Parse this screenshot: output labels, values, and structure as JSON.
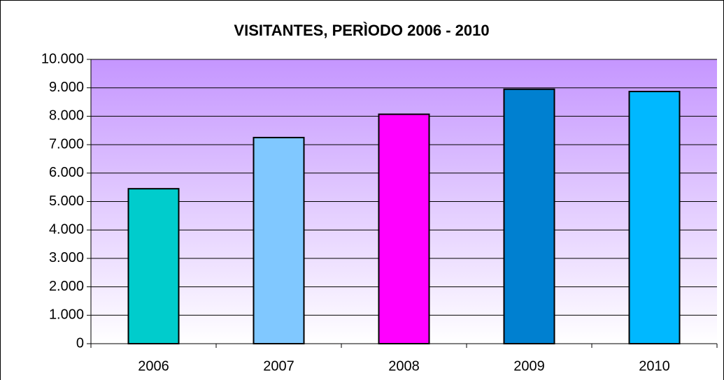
{
  "chart_data": {
    "type": "bar",
    "title": "VISITANTES, PERÌODO 2006 - 2010",
    "categories": [
      "2006",
      "2007",
      "2008",
      "2009",
      "2010"
    ],
    "values": [
      5450,
      7250,
      8070,
      8950,
      8870
    ],
    "colors": [
      "#00cccc",
      "#80c8ff",
      "#ff00ff",
      "#0080d0",
      "#00b8ff"
    ],
    "ylim": [
      0,
      10000
    ],
    "yticks": [
      0,
      {
        "value": 1000,
        "label": "1.000"
      },
      {
        "value": 2000,
        "label": "2.000"
      },
      {
        "value": 3000,
        "label": "3.000"
      },
      {
        "value": 4000,
        "label": "4.000"
      },
      {
        "value": 5000,
        "label": "5.000"
      },
      {
        "value": 6000,
        "label": "6.000"
      },
      {
        "value": 7000,
        "label": "7.000"
      },
      {
        "value": 8000,
        "label": "8.000"
      },
      {
        "value": 9000,
        "label": "9.000"
      },
      {
        "value": 10000,
        "label": "10.000"
      }
    ],
    "grid": true
  }
}
